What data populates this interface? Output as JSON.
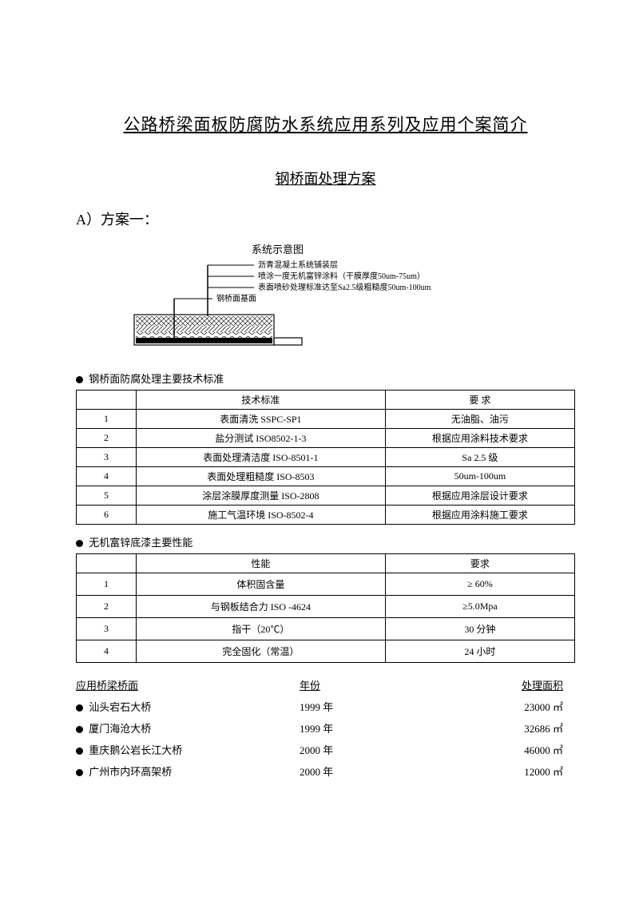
{
  "title_main": "公路桥梁面板防腐防水系统应用系列及应用个案简介",
  "title_sub": "钢桥面处理方案",
  "plan_label": "A）方案一：",
  "diagram": {
    "title": "系统示意图",
    "label_1": "沥青混凝土系统铺装层",
    "label_2": "喷涂一度无机富锌涂料（干膜厚度50um-75um）",
    "label_3": "表面喷砂处理标准达至Sa2.5级粗糙度50um-100um",
    "label_4": "钢桥面基面",
    "layer_colors": {
      "surface_hatch": "#333333",
      "mid_hatch": "#444444",
      "base": "#000000",
      "outline": "#000000"
    }
  },
  "section1_title": "钢桥面防腐处理主要技术标准",
  "table1": {
    "head_mid": "技术标准",
    "head_req": "要 求",
    "rows": [
      {
        "idx": "1",
        "mid": "表面清洗 SSPC-SP1",
        "req": "无油脂、油污"
      },
      {
        "idx": "2",
        "mid": "盐分测试 ISO8502-1-3",
        "req": "根据应用涂料技术要求"
      },
      {
        "idx": "3",
        "mid": "表面处理清洁度 ISO-8501-1",
        "req": "Sa 2.5 级"
      },
      {
        "idx": "4",
        "mid": "表面处理粗糙度 ISO-8503",
        "req": "50um-100um"
      },
      {
        "idx": "5",
        "mid": "涂层涂膜厚度测量 ISO-2808",
        "req": "根据应用涂层设计要求"
      },
      {
        "idx": "6",
        "mid": "施工气温环境 ISO-8502-4",
        "req": "根据应用涂料施工要求"
      }
    ]
  },
  "section2_title": "无机富锌底漆主要性能",
  "table2": {
    "head_mid": "性能",
    "head_req": "要求",
    "rows": [
      {
        "idx": "1",
        "mid": "体积固含量",
        "req": "≥ 60%"
      },
      {
        "idx": "2",
        "mid": "与钢板结合力 ISO -4624",
        "req": "≥5.0Mpa"
      },
      {
        "idx": "3",
        "mid": "指干（20℃）",
        "req": "30 分钟"
      },
      {
        "idx": "4",
        "mid": "完全固化（常温）",
        "req": "24 小时"
      }
    ]
  },
  "apps": {
    "head_a": "应用桥梁桥面",
    "head_b": "年份",
    "head_c": "处理面积",
    "rows": [
      {
        "a": "汕头宕石大桥",
        "b": "1999 年",
        "c": "23000 ㎡"
      },
      {
        "a": "厦门海沧大桥",
        "b": "1999 年",
        "c": "32686 ㎡"
      },
      {
        "a": "重庆鹅公岩长江大桥",
        "b": "2000 年",
        "c": "46000 ㎡"
      },
      {
        "a": "广州市内环高架桥",
        "b": "2000 年",
        "c": "12000 ㎡"
      }
    ]
  }
}
